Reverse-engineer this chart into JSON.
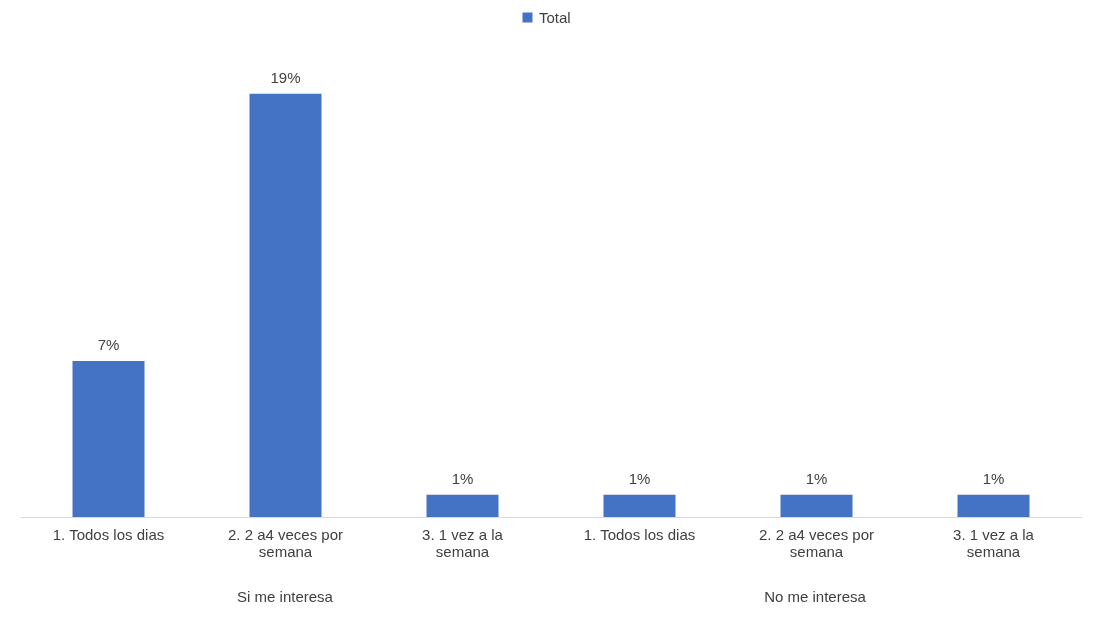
{
  "chart_data": {
    "type": "bar",
    "categories": [
      "1. Todos los dias",
      "2. 2 a4 veces por semana",
      "3. 1 vez a la semana",
      "1. Todos los dias",
      "2. 2 a4 veces por semana",
      "3. 1 vez a la semana"
    ],
    "series": [
      {
        "name": "Total",
        "color": "#4472c4",
        "values": [
          7,
          19,
          1,
          1,
          1,
          1
        ],
        "value_labels": [
          "7%",
          "19%",
          "1%",
          "1%",
          "1%",
          "1%"
        ]
      }
    ],
    "annotations": [
      "Si me interesa",
      "No me interesa"
    ],
    "legend": "top"
  }
}
